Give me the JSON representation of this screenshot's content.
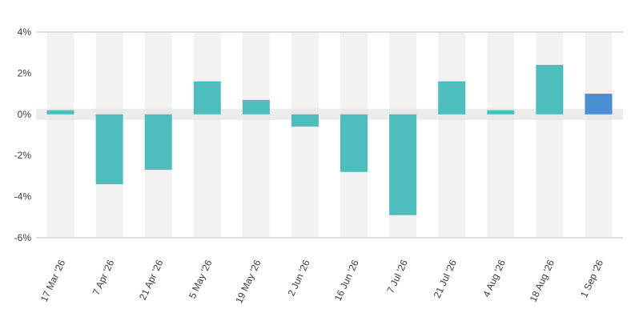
{
  "chart_data": {
    "type": "bar",
    "title": "",
    "xlabel": "",
    "ylabel": "",
    "categories": [
      "17 Mar '26",
      "7 Apr '26",
      "21 Apr '26",
      "5 May '26",
      "19 May '26",
      "2 Jun '26",
      "16 Jun '26",
      "7 Jul '26",
      "21 Jul '26",
      "4 Aug '26",
      "18 Aug '26",
      "1 Sep '26"
    ],
    "values": [
      0.2,
      -3.4,
      -2.7,
      1.6,
      0.7,
      -0.6,
      -2.8,
      -4.9,
      1.6,
      0.2,
      2.4,
      1.0
    ],
    "highlight_index": 11,
    "ylim": [
      -6,
      4
    ],
    "yticks": [
      4,
      2,
      0,
      -2,
      -4,
      -6
    ],
    "ytick_labels": [
      "4%",
      "2%",
      "0%",
      "-2%",
      "-4%",
      "-6%"
    ],
    "grid": true,
    "colors": {
      "bar": "#4dbdbd",
      "highlight": "#4a8fd4",
      "band": "#f2f2f2",
      "zero_band": "#e4e4e4",
      "axis": "#dddddd",
      "text": "#3a3a3a"
    }
  }
}
